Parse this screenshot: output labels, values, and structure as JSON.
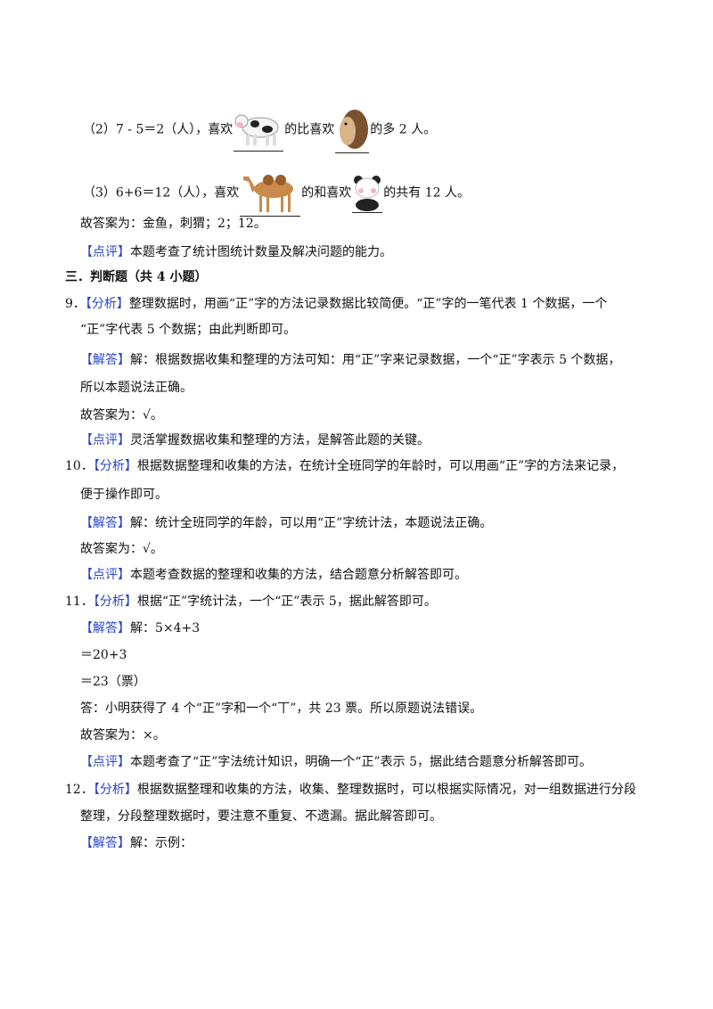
{
  "q8": {
    "line2": {
      "pre": "（2）7 - 5＝2（人），喜欢",
      "mid": "的比喜欢",
      "post": "的多 2 人。",
      "animal_a": "cow",
      "animal_b": "hedgehog"
    },
    "line3": {
      "pre": "（3）6+6＝12（人），喜欢",
      "mid": "的和喜欢",
      "post": "的共有 12 人。",
      "animal_a": "camel",
      "animal_b": "panda"
    },
    "answer": "故答案为：金鱼，刺猬；2；12。",
    "comment_tag": "【点评】",
    "comment": "本题考查了统计图统计数量及解决问题的能力。"
  },
  "section3": {
    "title": "三．判断题（共 4 小题）"
  },
  "tags": {
    "analysis": "【分析】",
    "solution": "【解答】",
    "comment": "【点评】"
  },
  "q9": {
    "num": "9．",
    "analysis1": "整理数据时，用画“正”字的方法记录数据比较简便。“正”字的一笔代表 1 个数据，一个",
    "analysis2": "“正”字代表 5 个数据；由此判断即可。",
    "solution1": "解：根据数据收集和整理的方法可知：用“正”字来记录数据，一个“正”字表示 5 个数据，",
    "solution2": "所以本题说法正确。",
    "answer": "故答案为：√。",
    "comment": "灵活掌握数据收集和整理的方法，是解答此题的关键。"
  },
  "q10": {
    "num": "10．",
    "analysis1": "根据数据整理和收集的方法，在统计全班同学的年龄时，可以用画“正”字的方法来记录，",
    "analysis2": "便于操作即可。",
    "solution1": "解：统计全班同学的年龄，可以用“正”字统计法，本题说法正确。",
    "answer": "故答案为：√。",
    "comment": "本题考查数据的整理和收集的方法，结合题意分析解答即可。"
  },
  "q11": {
    "num": "11．",
    "analysis1": "根据“正”字统计法，一个“正”表示 5，据此解答即可。",
    "solution1": "解：5×4+3",
    "step2": "＝20+3",
    "step3": "＝23（票）",
    "reply": "答：小明获得了 4 个“正”字和一个“丅”，共 23 票。所以原题说法错误。",
    "answer": "故答案为：×。",
    "comment": "本题考查了“正”字法统计知识，明确一个“正”表示 5，据此结合题意分析解答即可。"
  },
  "q12": {
    "num": "12．",
    "analysis1": "根据数据整理和收集的方法，收集、整理数据时，可以根据实际情况，对一组数据进行分段",
    "analysis2": "整理，分段整理数据时，要注意不重复、不遗漏。据此解答即可。",
    "solution1": "解：示例："
  }
}
